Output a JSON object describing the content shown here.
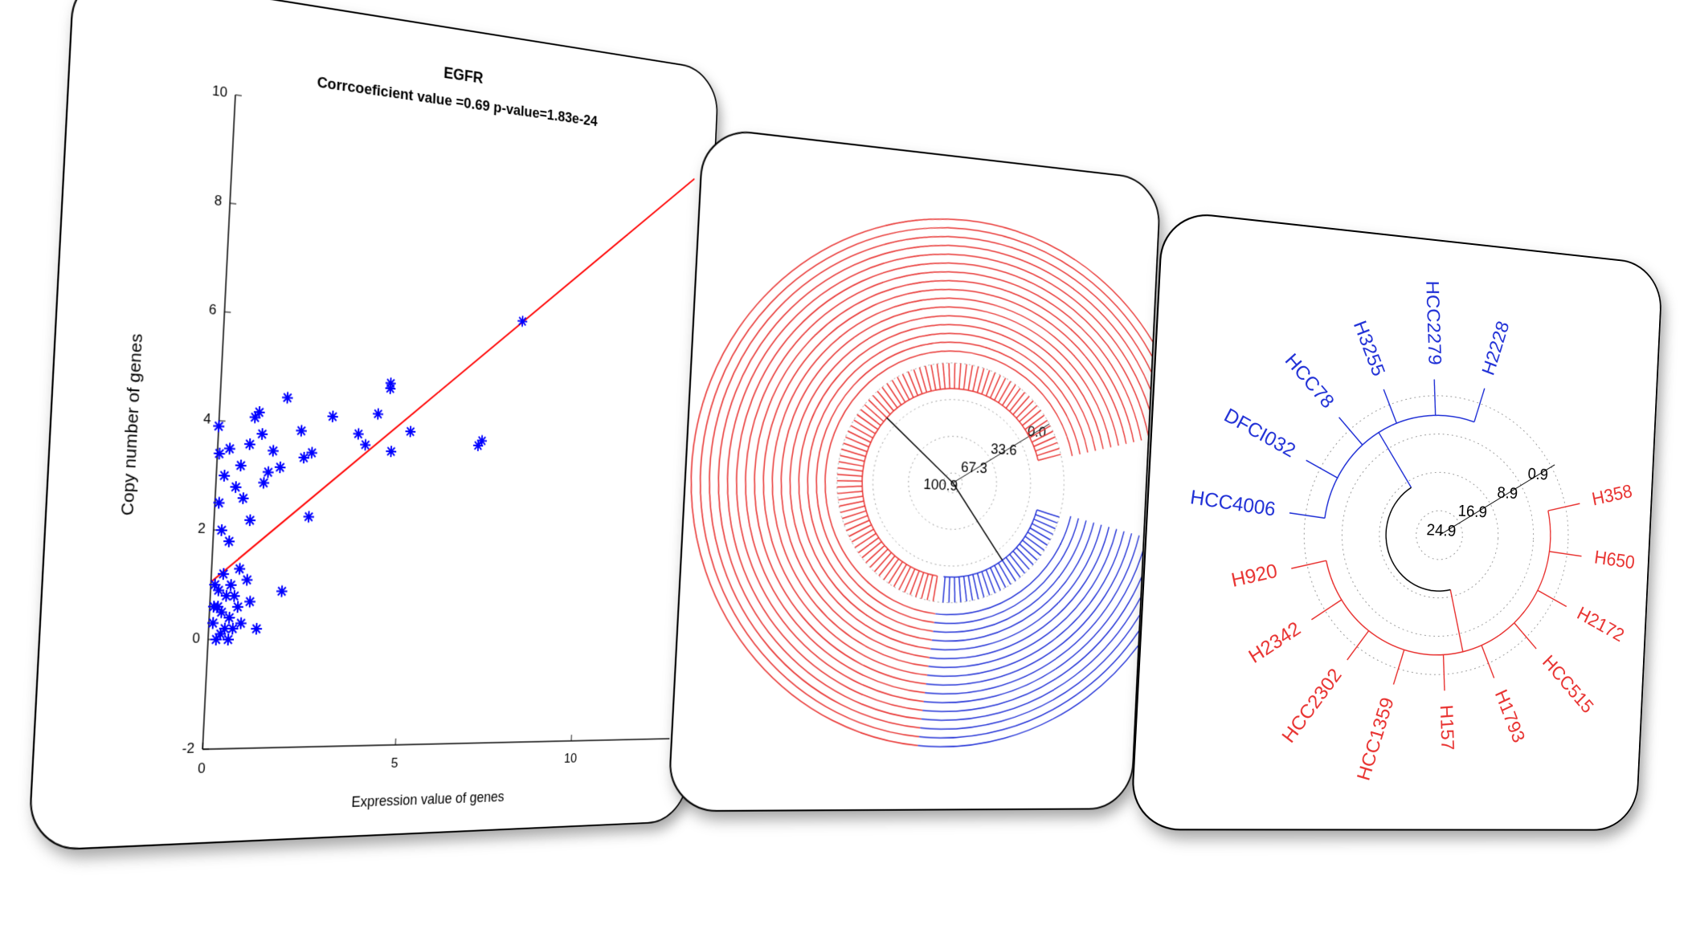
{
  "chart_data": [
    {
      "type": "scatter",
      "title": "EGFR",
      "subtitle": "Corrcoeficient value =0.69  p-value=1.83e-24",
      "x_label": "Expression value of genes",
      "y_label": "Copy number of genes",
      "xlim": [
        0,
        13
      ],
      "ylim": [
        -2,
        10
      ],
      "xticks": [
        0,
        5,
        10
      ],
      "yticks": [
        -2,
        0,
        2,
        4,
        6,
        8,
        10
      ],
      "series": [
        {
          "color": "#0000ff",
          "x": [
            8.0,
            7.0,
            6.9,
            4.4,
            4.4,
            5.0,
            4.5,
            4.1,
            3.8,
            3.6,
            2.9,
            2.4,
            2.4,
            1.7,
            1.8,
            2.1,
            2.2,
            1.4,
            1.3,
            1.2,
            1.0,
            0.9,
            0.8,
            0.6,
            0.5,
            0.3,
            0.1,
            0.05,
            0.0,
            0.2,
            0.7,
            1.1,
            0.9,
            0.4,
            1.6,
            0.2,
            0.1,
            0.2,
            0.3,
            0.4,
            0.5,
            0.2,
            0.6,
            0.3,
            0.1,
            0.7,
            0.5,
            0.8,
            0.4,
            0.2,
            0.6,
            1.0,
            0.9,
            0.3,
            0.1,
            0.5,
            1.2,
            0.7
          ],
          "values": [
            6.3,
            3.9,
            3.8,
            4.9,
            4.8,
            4.0,
            3.6,
            4.3,
            3.7,
            3.9,
            4.2,
            3.5,
            2.3,
            4.5,
            0.9,
            3.9,
            3.4,
            3.5,
            3.1,
            2.9,
            4.2,
            4.1,
            3.6,
            3.2,
            2.8,
            3.5,
            2.5,
            3.4,
            3.9,
            3.0,
            2.6,
            3.8,
            2.2,
            1.8,
            3.2,
            2.0,
            0.3,
            0.6,
            0.1,
            0.8,
            0.4,
            0.9,
            0.2,
            0.5,
            1.0,
            0.6,
            1.0,
            0.3,
            0.2,
            0.0,
            0.8,
            0.7,
            1.1,
            1.2,
            0.6,
            0.0,
            0.2,
            1.3
          ]
        }
      ],
      "fit_line": {
        "color": "#ff0000",
        "x": [
          0,
          13
        ],
        "values": [
          1.05,
          9.55
        ]
      }
    },
    {
      "type": "dendrogram",
      "rlim": [
        110,
        0
      ],
      "rticks": [
        100.9,
        67.3,
        33.6,
        {
          "value": 0,
          "label": "0.0"
        }
      ],
      "cluster_colors": [
        "#e8312f",
        "#1f2fd6"
      ]
    },
    {
      "type": "dendrogram",
      "rlim": [
        30,
        0
      ],
      "rticks": [
        24.9,
        16.9,
        8.9,
        0.9
      ],
      "leaves": [
        {
          "label": "H358",
          "color": "#e8312f"
        },
        {
          "label": "H650",
          "color": "#e8312f"
        },
        {
          "label": "H2172",
          "color": "#e8312f"
        },
        {
          "label": "HCC515",
          "color": "#e8312f"
        },
        {
          "label": "H1793",
          "color": "#e8312f"
        },
        {
          "label": "H157",
          "color": "#e8312f"
        },
        {
          "label": "HCC1359",
          "color": "#e8312f"
        },
        {
          "label": "HCC2302",
          "color": "#e8312f"
        },
        {
          "label": "H2342",
          "color": "#e8312f"
        },
        {
          "label": "H920",
          "color": "#e8312f"
        },
        {
          "label": "HCC4006",
          "color": "#1f2fd6"
        },
        {
          "label": "DFCI032",
          "color": "#1f2fd6"
        },
        {
          "label": "HCC78",
          "color": "#1f2fd6"
        },
        {
          "label": "H3255",
          "color": "#1f2fd6"
        },
        {
          "label": "HCC2279",
          "color": "#1f2fd6"
        },
        {
          "label": "H2228",
          "color": "#1f2fd6"
        }
      ]
    }
  ]
}
